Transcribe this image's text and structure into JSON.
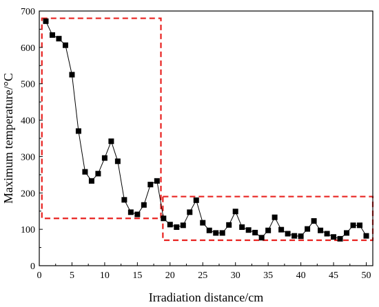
{
  "chart_data": {
    "type": "scatter",
    "title": "",
    "xlabel": "Irradiation distance/cm",
    "ylabel": "Maximum temperature/°C",
    "xlim": [
      0,
      51
    ],
    "ylim": [
      0,
      700
    ],
    "xticks": [
      0,
      5,
      10,
      15,
      20,
      25,
      30,
      35,
      40,
      45,
      50
    ],
    "yticks": [
      0,
      100,
      200,
      300,
      400,
      500,
      600,
      700
    ],
    "grid": false,
    "legend": "none",
    "colors": {
      "series": "#000000",
      "highlight": "#e8211f"
    },
    "series": [
      {
        "marker": "square",
        "connected": true,
        "x": [
          1,
          2,
          3,
          4,
          5,
          6,
          7,
          8,
          9,
          10,
          11,
          12,
          13,
          14,
          15,
          16,
          17,
          18,
          19,
          20,
          21,
          22,
          23,
          24,
          25,
          26,
          27,
          28,
          29,
          30,
          31,
          32,
          33,
          34,
          35,
          36,
          37,
          38,
          39,
          40,
          41,
          42,
          43,
          44,
          45,
          46,
          47,
          48,
          49,
          50
        ],
        "y": [
          672,
          634,
          624,
          606,
          525,
          370,
          258,
          233,
          253,
          296,
          342,
          287,
          181,
          147,
          141,
          167,
          223,
          233,
          130,
          113,
          106,
          111,
          147,
          180,
          118,
          97,
          90,
          90,
          112,
          149,
          106,
          98,
          91,
          77,
          97,
          133,
          99,
          88,
          82,
          81,
          101,
          123,
          97,
          88,
          79,
          74,
          90,
          111,
          111,
          82
        ]
      }
    ],
    "annotations": [
      {
        "type": "dashed-box",
        "x0": 0.4,
        "x1": 18.6,
        "y0": 130,
        "y1": 680
      },
      {
        "type": "dashed-box",
        "x0": 18.9,
        "x1": 51,
        "y0": 70,
        "y1": 190
      }
    ]
  }
}
